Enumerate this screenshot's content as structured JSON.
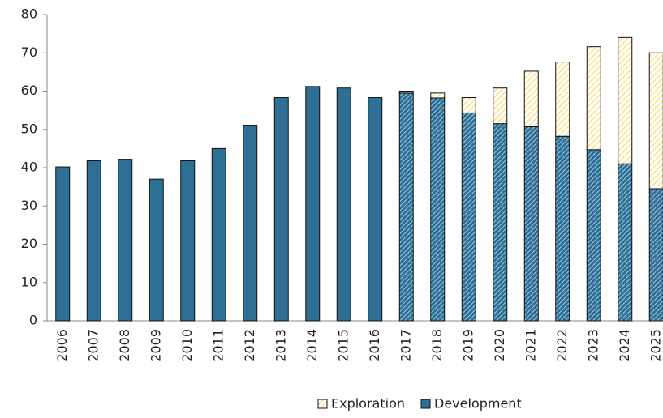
{
  "chart_data": {
    "type": "stacked_bar",
    "categories": [
      "2006",
      "2007",
      "2008",
      "2009",
      "2010",
      "2011",
      "2012",
      "2013",
      "2014",
      "2015",
      "2016",
      "2017",
      "2018",
      "2019",
      "2020",
      "2021",
      "2022",
      "2023",
      "2024",
      "2025"
    ],
    "series": [
      {
        "name": "Development",
        "color": "#2e6f95",
        "values": [
          40.2,
          41.8,
          42.2,
          37,
          41.8,
          45,
          51.1,
          58.3,
          61.2,
          60.8,
          58.3,
          59.5,
          58.2,
          54.3,
          51.5,
          50.7,
          48.2,
          44.7,
          41,
          34.5
        ]
      },
      {
        "name": "Exploration",
        "color": "#ffd966",
        "values": [
          0,
          0,
          0,
          0,
          0,
          0,
          0,
          0,
          0,
          0,
          0,
          0.5,
          1.3,
          4.0,
          9.3,
          14.5,
          19.4,
          26.9,
          33.0,
          35.5
        ]
      }
    ],
    "hatch_from": "2017",
    "ylim": [
      0,
      80
    ],
    "yticks": [
      0,
      10,
      20,
      30,
      40,
      50,
      60,
      70,
      80
    ],
    "legend": "bottom"
  }
}
